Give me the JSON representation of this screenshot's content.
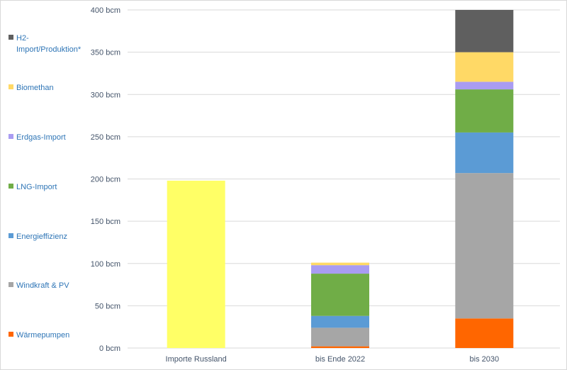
{
  "chart_data": {
    "type": "bar",
    "stacked": true,
    "categories": [
      "Importe Russland",
      "bis Ende 2022",
      "bis 2030"
    ],
    "y_unit": "bcm",
    "ylim": [
      0,
      400
    ],
    "yticks": [
      {
        "value": 0,
        "label": "0 bcm"
      },
      {
        "value": 50,
        "label": "50 bcm"
      },
      {
        "value": 100,
        "label": "100 bcm"
      },
      {
        "value": 150,
        "label": "150 bcm"
      },
      {
        "value": 200,
        "label": "200 bcm"
      },
      {
        "value": 250,
        "label": "250 bcm"
      },
      {
        "value": 300,
        "label": "300 bcm"
      },
      {
        "value": 350,
        "label": "350 bcm"
      },
      {
        "value": 400,
        "label": "400 bcm"
      }
    ],
    "grid": true,
    "legend_position": "left",
    "series": [
      {
        "name": "Importe Russland",
        "show_in_legend": false,
        "color": "#ffff66",
        "values": [
          198,
          0,
          0
        ]
      },
      {
        "name": "Wärmepumpen",
        "show_in_legend": true,
        "color": "#ff6600",
        "values": [
          0,
          2,
          35
        ]
      },
      {
        "name": "Windkraft & PV",
        "show_in_legend": true,
        "color": "#a6a6a6",
        "values": [
          0,
          22,
          172
        ]
      },
      {
        "name": "Energieffizienz",
        "show_in_legend": true,
        "color": "#5b9bd5",
        "values": [
          0,
          14,
          48
        ]
      },
      {
        "name": "LNG-Import",
        "show_in_legend": true,
        "color": "#70ad47",
        "values": [
          0,
          50,
          51
        ]
      },
      {
        "name": "Erdgas-Import",
        "show_in_legend": true,
        "color": "#a99cf2",
        "values": [
          0,
          10,
          9
        ]
      },
      {
        "name": "Biomethan",
        "show_in_legend": true,
        "color": "#ffd966",
        "values": [
          0,
          3,
          35
        ]
      },
      {
        "name": "H2-Import/Produktion*",
        "show_in_legend": true,
        "color": "#5f5f5f",
        "values": [
          0,
          0,
          50
        ]
      }
    ],
    "colors": {
      "gridline": "#d9d9d9",
      "tick_text": "#44546a",
      "legend_text": "#2e75b6"
    }
  }
}
